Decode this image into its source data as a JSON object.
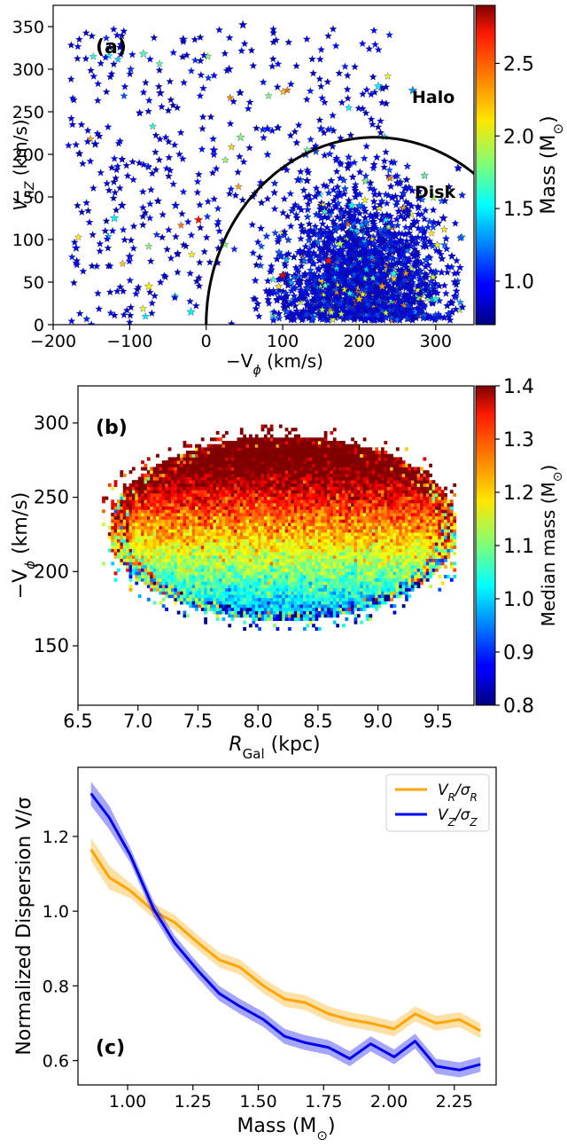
{
  "chart_data": [
    {
      "id": "a",
      "type": "scatter",
      "panel_label": "(a)",
      "xlabel": "−V",
      "xlabel_sub": "ϕ",
      "xlabel_unit": " (km/s)",
      "ylabel": "V",
      "ylabel_sub": "RZ",
      "ylabel_unit": " (km/s)",
      "xlim": [
        -200,
        350
      ],
      "ylim": [
        0,
        375
      ],
      "xticks": [
        -200,
        -100,
        0,
        100,
        200,
        300
      ],
      "xtick_labels": [
        "−200",
        "−100",
        "0",
        "100",
        "200",
        "300"
      ],
      "yticks": [
        0,
        50,
        100,
        150,
        200,
        250,
        300,
        350
      ],
      "marker": "star",
      "halo_label": "Halo",
      "disk_label": "Disk",
      "boundary": {
        "center_x": 220,
        "center_y": 0,
        "radius": 220
      },
      "colorbar": {
        "label": "Mass (M",
        "label_sub": "⊙",
        "label_end": ")",
        "range": [
          0.7,
          2.9
        ],
        "ticks": [
          1.0,
          1.5,
          2.0,
          2.5
        ],
        "tick_labels": [
          "1.0",
          "1.5",
          "2.0",
          "2.5"
        ],
        "colormap": "jet"
      },
      "sample_points": [
        [
          -170,
          90,
          1.0
        ],
        [
          -145,
          212,
          0.9
        ],
        [
          -120,
          125,
          1.5
        ],
        [
          -110,
          140,
          0.9
        ],
        [
          -100,
          80,
          1.0
        ],
        [
          -82,
          318,
          1.7
        ],
        [
          -75,
          45,
          2.1
        ],
        [
          -60,
          272,
          0.9
        ],
        [
          -40,
          140,
          1.0
        ],
        [
          -30,
          335,
          0.9
        ],
        [
          -10,
          123,
          2.6
        ],
        [
          -20,
          15,
          1.5
        ],
        [
          10,
          205,
          1.0
        ],
        [
          30,
          300,
          0.9
        ],
        [
          48,
          352,
          0.9
        ],
        [
          45,
          220,
          1.8
        ],
        [
          80,
          230,
          1.0
        ],
        [
          100,
          58,
          2.7
        ],
        [
          120,
          170,
          1.0
        ],
        [
          130,
          200,
          1.1
        ],
        [
          150,
          230,
          1.0
        ],
        [
          160,
          75,
          2.6
        ],
        [
          175,
          95,
          1.9
        ],
        [
          190,
          140,
          1.5
        ],
        [
          210,
          120,
          1.2
        ],
        [
          225,
          280,
          1.5
        ],
        [
          230,
          45,
          2.3
        ],
        [
          245,
          60,
          1.6
        ],
        [
          260,
          160,
          1.0
        ],
        [
          270,
          275,
          1.3
        ],
        [
          290,
          70,
          1.0
        ],
        [
          300,
          30,
          1.6
        ],
        [
          310,
          125,
          0.9
        ],
        [
          325,
          50,
          0.9
        ],
        [
          200,
          30,
          2.2
        ]
      ]
    },
    {
      "id": "b",
      "type": "heatmap",
      "panel_label": "(b)",
      "xlabel": "R",
      "xlabel_sub": "Gal",
      "xlabel_unit": " (kpc)",
      "ylabel": "−V",
      "ylabel_sub": "ϕ",
      "ylabel_unit": " (km/s)",
      "xlim": [
        6.5,
        9.8
      ],
      "ylim": [
        110,
        325
      ],
      "xticks": [
        6.5,
        7.0,
        7.5,
        8.0,
        8.5,
        9.0,
        9.5
      ],
      "yticks": [
        150,
        200,
        250,
        300
      ],
      "colorbar": {
        "label": "Median mass (M",
        "label_sub": "⊙",
        "label_end": ")",
        "range": [
          0.8,
          1.4
        ],
        "ticks": [
          0.8,
          0.9,
          1.0,
          1.1,
          1.2,
          1.3,
          1.4
        ],
        "tick_labels": [
          "0.8",
          "0.9",
          "1.0",
          "1.1",
          "1.2",
          "1.3",
          "1.4"
        ],
        "colormap": "jet"
      }
    },
    {
      "id": "c",
      "type": "line",
      "panel_label": "(c)",
      "xlabel": "Mass (M",
      "xlabel_sub": "⊙",
      "xlabel_end": ")",
      "ylabel": "Normalized Dispersion V/σ",
      "xlim": [
        0.81,
        2.41
      ],
      "ylim": [
        0.535,
        1.385
      ],
      "xticks": [
        1.0,
        1.25,
        1.5,
        1.75,
        2.0,
        2.25
      ],
      "xtick_labels": [
        "1.00",
        "1.25",
        "1.50",
        "1.75",
        "2.00",
        "2.25"
      ],
      "yticks": [
        0.6,
        0.8,
        1.0,
        1.2
      ],
      "ytick_labels": [
        "0.6",
        "0.8",
        "1.0",
        "1.2"
      ],
      "legend_position": "top-right",
      "x": [
        0.86,
        0.93,
        1.01,
        1.1,
        1.18,
        1.27,
        1.35,
        1.43,
        1.52,
        1.6,
        1.68,
        1.77,
        1.85,
        1.93,
        2.02,
        2.1,
        2.18,
        2.27,
        2.35
      ],
      "series": [
        {
          "name": "V",
          "name_sub1": "R",
          "name_mid": "/σ",
          "name_sub2": "R",
          "color": "#ffa500",
          "values": [
            1.165,
            1.09,
            1.055,
            1.0,
            0.97,
            0.915,
            0.87,
            0.85,
            0.8,
            0.765,
            0.755,
            0.725,
            0.71,
            0.7,
            0.685,
            0.725,
            0.7,
            0.71,
            0.68
          ],
          "band": 0.02
        },
        {
          "name": "V",
          "name_sub1": "Z",
          "name_mid": "/σ",
          "name_sub2": "Z",
          "color": "#0000ee",
          "values": [
            1.315,
            1.25,
            1.15,
            1.005,
            0.915,
            0.84,
            0.78,
            0.745,
            0.71,
            0.665,
            0.648,
            0.635,
            0.605,
            0.645,
            0.61,
            0.652,
            0.585,
            0.575,
            0.59
          ],
          "band": 0.02
        }
      ]
    }
  ]
}
